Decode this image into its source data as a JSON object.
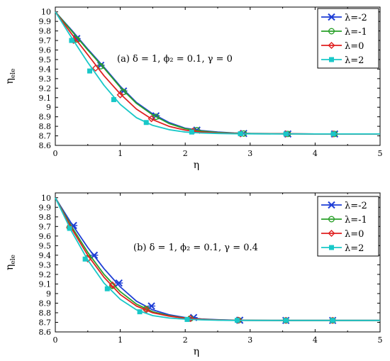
{
  "chart_data": [
    {
      "type": "line",
      "annotation": "(a)  δ = 1, ϕ₂ = 0.1, γ = 0",
      "xlabel": "η",
      "ylabel": "η_ele",
      "xlim": [
        0,
        5
      ],
      "ylim": [
        8.6,
        10.05
      ],
      "xticks": [
        "0",
        "1",
        "2",
        "3",
        "4",
        "5"
      ],
      "yticks": [
        "8.6",
        "8.7",
        "8.8",
        "8.9",
        "9",
        "9.1",
        "9.2",
        "9.3",
        "9.4",
        "9.5",
        "9.6",
        "9.7",
        "9.8",
        "9.9",
        "10"
      ],
      "legend_position": "top-right",
      "series": [
        {
          "name": "λ=-2",
          "color": "#1f3fd6",
          "marker": "star",
          "x": [
            0,
            0.25,
            0.5,
            0.75,
            1.0,
            1.25,
            1.5,
            1.75,
            2.0,
            2.25,
            2.5,
            2.75,
            3.0,
            3.5,
            4.0,
            4.5,
            5.0
          ],
          "y": [
            10,
            9.81,
            9.61,
            9.42,
            9.22,
            9.05,
            8.93,
            8.84,
            8.78,
            8.755,
            8.74,
            8.73,
            8.725,
            8.723,
            8.72,
            8.72,
            8.72
          ],
          "markers_x": [
            0.33,
            0.7,
            1.05,
            1.55,
            2.18,
            2.9,
            3.58,
            4.3
          ],
          "markers_y": [
            9.72,
            9.44,
            9.17,
            8.91,
            8.76,
            8.725,
            8.72,
            8.72
          ]
        },
        {
          "name": "λ=-1",
          "color": "#2aa02a",
          "marker": "circle",
          "x": [
            0,
            0.25,
            0.5,
            0.75,
            1.0,
            1.25,
            1.5,
            1.75,
            2.0,
            2.25,
            2.5,
            2.75,
            3.0,
            3.5,
            4.0,
            4.5,
            5.0
          ],
          "y": [
            10,
            9.8,
            9.6,
            9.41,
            9.21,
            9.04,
            8.92,
            8.83,
            8.775,
            8.75,
            8.735,
            8.728,
            8.724,
            8.722,
            8.72,
            8.72,
            8.72
          ],
          "markers_x": [
            0.33,
            0.7,
            1.05,
            1.55,
            2.18,
            2.9,
            3.58,
            4.3
          ],
          "markers_y": [
            9.71,
            9.43,
            9.16,
            8.9,
            8.76,
            8.725,
            8.72,
            8.72
          ]
        },
        {
          "name": "λ=0",
          "color": "#e02020",
          "marker": "diamond",
          "x": [
            0,
            0.25,
            0.5,
            0.75,
            1.0,
            1.25,
            1.5,
            1.75,
            2.0,
            2.25,
            2.5,
            2.75,
            3.0,
            3.5,
            4.0,
            4.5,
            5.0
          ],
          "y": [
            10,
            9.77,
            9.55,
            9.33,
            9.14,
            8.98,
            8.87,
            8.8,
            8.76,
            8.74,
            8.73,
            8.725,
            8.722,
            8.721,
            8.72,
            8.72,
            8.72
          ],
          "markers_x": [
            0.28,
            0.62,
            1.0,
            1.48,
            2.12,
            2.85,
            3.55,
            4.28
          ],
          "markers_y": [
            9.7,
            9.41,
            9.13,
            8.88,
            8.75,
            8.722,
            8.72,
            8.72
          ]
        },
        {
          "name": "λ=2",
          "color": "#19c8c8",
          "marker": "square",
          "x": [
            0,
            0.25,
            0.5,
            0.75,
            1.0,
            1.25,
            1.5,
            1.75,
            2.0,
            2.25,
            2.5,
            2.75,
            3.0,
            3.5,
            4.0,
            4.5,
            5.0
          ],
          "y": [
            10,
            9.73,
            9.47,
            9.23,
            9.03,
            8.89,
            8.81,
            8.765,
            8.74,
            8.73,
            8.725,
            8.722,
            8.721,
            8.72,
            8.72,
            8.72,
            8.72
          ],
          "markers_x": [
            0.25,
            0.53,
            0.9,
            1.4,
            2.1,
            2.85,
            3.55,
            4.28
          ],
          "markers_y": [
            9.7,
            9.38,
            9.08,
            8.84,
            8.74,
            8.722,
            8.72,
            8.72
          ]
        }
      ]
    },
    {
      "type": "line",
      "annotation": "(b)  δ = 1, ϕ₂ = 0.1, γ = 0.4",
      "xlabel": "η",
      "ylabel": "η_ele",
      "xlim": [
        0,
        5
      ],
      "ylim": [
        8.6,
        10.05
      ],
      "xticks": [
        "0",
        "1",
        "2",
        "3",
        "4",
        "5"
      ],
      "yticks": [
        "8.6",
        "8.7",
        "8.8",
        "8.9",
        "9",
        "9.1",
        "9.2",
        "9.3",
        "9.4",
        "9.5",
        "9.6",
        "9.7",
        "9.8",
        "9.9",
        "10"
      ],
      "legend_position": "top-right",
      "series": [
        {
          "name": "λ=-2",
          "color": "#1f3fd6",
          "marker": "star",
          "x": [
            0,
            0.25,
            0.5,
            0.75,
            1.0,
            1.25,
            1.5,
            1.75,
            2.0,
            2.25,
            2.5,
            2.75,
            3.0,
            3.5,
            4.0,
            4.5,
            5.0
          ],
          "y": [
            10,
            9.73,
            9.48,
            9.26,
            9.07,
            8.92,
            8.83,
            8.78,
            8.75,
            8.735,
            8.727,
            8.723,
            8.721,
            8.72,
            8.72,
            8.72,
            8.72
          ],
          "markers_x": [
            0.28,
            0.6,
            0.98,
            1.48,
            2.13,
            2.84,
            3.55,
            4.27
          ],
          "markers_y": [
            9.71,
            9.4,
            9.11,
            8.87,
            8.75,
            8.722,
            8.72,
            8.72
          ]
        },
        {
          "name": "λ=-1",
          "color": "#2aa02a",
          "marker": "circle",
          "x": [
            0,
            0.25,
            0.5,
            0.75,
            1.0,
            1.25,
            1.5,
            1.75,
            2.0,
            2.25,
            2.5,
            2.75,
            3.0,
            3.5,
            4.0,
            4.5,
            5.0
          ],
          "y": [
            10,
            9.7,
            9.43,
            9.2,
            9.02,
            8.89,
            8.81,
            8.77,
            8.745,
            8.732,
            8.725,
            8.722,
            8.721,
            8.72,
            8.72,
            8.72,
            8.72
          ],
          "markers_x": [
            0.22,
            0.5,
            0.88,
            1.4,
            2.08,
            2.82,
            3.55,
            4.27
          ],
          "markers_y": [
            9.69,
            9.37,
            9.08,
            8.84,
            8.74,
            8.722,
            8.72,
            8.72
          ]
        },
        {
          "name": "λ=0",
          "color": "#e02020",
          "marker": "diamond",
          "x": [
            0,
            0.25,
            0.5,
            0.75,
            1.0,
            1.25,
            1.5,
            1.75,
            2.0,
            2.25,
            2.5,
            2.75,
            3.0,
            3.5,
            4.0,
            4.5,
            5.0
          ],
          "y": [
            10,
            9.68,
            9.4,
            9.17,
            8.99,
            8.87,
            8.8,
            8.765,
            8.742,
            8.73,
            8.724,
            8.721,
            8.72,
            8.72,
            8.72,
            8.72,
            8.72
          ],
          "markers_x": [
            0.22,
            0.5,
            0.88,
            1.4,
            2.08,
            2.82,
            3.55,
            4.27
          ],
          "markers_y": [
            9.69,
            9.36,
            9.09,
            8.83,
            8.74,
            8.722,
            8.72,
            8.72
          ]
        },
        {
          "name": "λ=2",
          "color": "#19c8c8",
          "marker": "square",
          "x": [
            0,
            0.25,
            0.5,
            0.75,
            1.0,
            1.25,
            1.5,
            1.75,
            2.0,
            2.25,
            2.5,
            2.75,
            3.0,
            3.5,
            4.0,
            4.5,
            5.0
          ],
          "y": [
            10,
            9.65,
            9.35,
            9.11,
            8.94,
            8.83,
            8.77,
            8.745,
            8.733,
            8.726,
            8.722,
            8.72,
            8.72,
            8.72,
            8.72,
            8.72,
            8.72
          ],
          "markers_x": [
            0.22,
            0.46,
            0.8,
            1.3,
            2.03,
            2.8,
            3.55,
            4.27
          ],
          "markers_y": [
            9.68,
            9.36,
            9.05,
            8.81,
            8.73,
            8.721,
            8.72,
            8.72
          ]
        }
      ]
    }
  ]
}
